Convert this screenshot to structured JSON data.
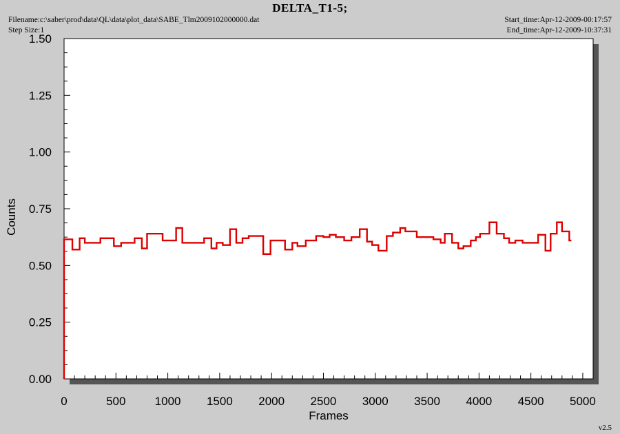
{
  "header": {
    "title": "DELTA_T1-5;",
    "filename": "Filename:c:\\saber\\prod\\data\\QL\\data\\plot_data\\SABE_Tlm2009102000000.dat",
    "step_size": "Step Size:1",
    "start_time": "Start_time:Apr-12-2009-00:17:57",
    "end_time": "End_time:Apr-12-2009-10:37:31",
    "version": "v2.5"
  },
  "colors": {
    "background": "#cccccc",
    "plot_bg": "#ffffff",
    "shadow": "#555555",
    "line": "#dd0000"
  },
  "chart_data": {
    "type": "line",
    "title": "DELTA_T1-5;",
    "xlabel": "Frames",
    "ylabel": "Counts",
    "xlim": [
      0,
      5100
    ],
    "ylim": [
      0,
      1.5
    ],
    "xticks": [
      0,
      500,
      1000,
      1500,
      2000,
      2500,
      3000,
      3500,
      4000,
      4500,
      5000
    ],
    "xtick_labels": [
      "0",
      "500",
      "1000",
      "1500",
      "2000",
      "2500",
      "3000",
      "3500",
      "4000",
      "4500",
      "5000"
    ],
    "yticks": [
      0,
      0.25,
      0.5,
      0.75,
      1.0,
      1.25,
      1.5
    ],
    "ytick_labels": [
      "0.00",
      "0.25",
      "0.50",
      "0.75",
      "1.00",
      "1.25",
      "1.50"
    ],
    "grid": false,
    "line_style": "step",
    "series": [
      {
        "x": [
          0,
          0,
          15,
          80,
          150,
          200,
          350,
          480,
          550,
          680,
          750,
          800,
          950,
          1080,
          1140,
          1350,
          1420,
          1470,
          1530,
          1600,
          1660,
          1720,
          1780,
          1920,
          1990,
          2130,
          2200,
          2250,
          2330,
          2430,
          2500,
          2560,
          2620,
          2700,
          2770,
          2850,
          2920,
          2970,
          3030,
          3110,
          3170,
          3240,
          3290,
          3400,
          3560,
          3630,
          3670,
          3740,
          3800,
          3850,
          3920,
          3970,
          4010,
          4100,
          4170,
          4240,
          4290,
          4350,
          4420,
          4480,
          4570,
          4640,
          4690,
          4750,
          4800,
          4870
        ],
        "y": [
          0,
          0.615,
          0.615,
          0.57,
          0.62,
          0.6,
          0.62,
          0.585,
          0.6,
          0.62,
          0.575,
          0.64,
          0.61,
          0.665,
          0.6,
          0.62,
          0.575,
          0.6,
          0.59,
          0.66,
          0.6,
          0.62,
          0.63,
          0.55,
          0.61,
          0.57,
          0.6,
          0.585,
          0.61,
          0.63,
          0.625,
          0.635,
          0.625,
          0.61,
          0.625,
          0.66,
          0.605,
          0.59,
          0.565,
          0.63,
          0.645,
          0.665,
          0.65,
          0.625,
          0.615,
          0.6,
          0.64,
          0.6,
          0.575,
          0.585,
          0.61,
          0.625,
          0.64,
          0.69,
          0.64,
          0.62,
          0.6,
          0.61,
          0.6,
          0.6,
          0.635,
          0.565,
          0.64,
          0.69,
          0.65,
          0.61
        ],
        "x_end": 4890
      }
    ]
  }
}
